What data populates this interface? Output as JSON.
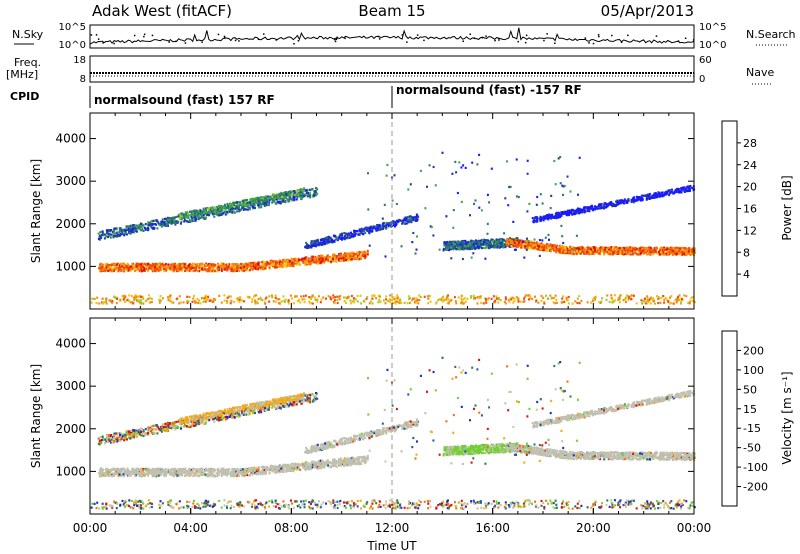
{
  "header": {
    "station": "Adak West (fitACF)",
    "beam": "Beam 15",
    "date": "05/Apr/2013"
  },
  "side_labels": {
    "nsky": "N.Sky",
    "nsearch": "N.Search",
    "freq_line1": "Freq.",
    "freq_line2": "[MHz]",
    "nave": "Nave",
    "cpid": "CPID"
  },
  "cpid_segments": [
    "normalsound (fast) 157 RF",
    "normalsound (fast) -157 RF"
  ],
  "colors": {
    "power_scale": [
      "#1a1aff",
      "#1f3f9e",
      "#2e7d6a",
      "#3fa84a",
      "#9ccc2c",
      "#f2c00f",
      "#f58a0f",
      "#f24a0a",
      "#e0100b"
    ],
    "velocity_scale": [
      "#1a2fbf",
      "#1f5fa8",
      "#2f7d4a",
      "#6fd12c",
      "#c0c0b0",
      "#d0c8a0",
      "#f5a80f",
      "#f56f0f",
      "#e0100b"
    ],
    "ground_scatter": "#c0c0b0"
  },
  "chart_data": [
    {
      "type": "line",
      "name": "noise",
      "ylabel_left": "N.Sky",
      "ylabel_right": "N.Search",
      "left_ticks": [
        "10^5",
        "10^0"
      ],
      "right_ticks": [
        "10^5",
        "10^0"
      ]
    },
    {
      "type": "line",
      "name": "frequency",
      "ylabel_left": "Freq. [MHz]",
      "ylabel_right": "Nave",
      "left_ticks": [
        "18",
        "8"
      ],
      "right_ticks": [
        "60",
        "0"
      ]
    },
    {
      "type": "heatmap",
      "name": "power",
      "ylabel": "Slant Range [km]",
      "ylim": [
        0,
        4600
      ],
      "yticks": [
        1000,
        2000,
        3000,
        4000
      ],
      "xlim": [
        0,
        24
      ],
      "colorbar_label": "Power [dB]",
      "colorbar_ticks": [
        "4",
        "8",
        "12",
        "16",
        "20",
        "24",
        "28"
      ]
    },
    {
      "type": "heatmap",
      "name": "velocity",
      "ylabel": "Slant Range [km]",
      "ylim": [
        0,
        4600
      ],
      "yticks": [
        1000,
        2000,
        3000,
        4000
      ],
      "xlim": [
        0,
        24
      ],
      "xticks": [
        "00:00",
        "04:00",
        "08:00",
        "12:00",
        "16:00",
        "20:00",
        "00:00"
      ],
      "xlabel": "Time UT",
      "colorbar_label": "Velocity [m s⁻¹]",
      "colorbar_ticks": [
        "-200",
        "-100",
        "-50",
        "-15",
        "15",
        "50",
        "100",
        "200"
      ]
    }
  ]
}
